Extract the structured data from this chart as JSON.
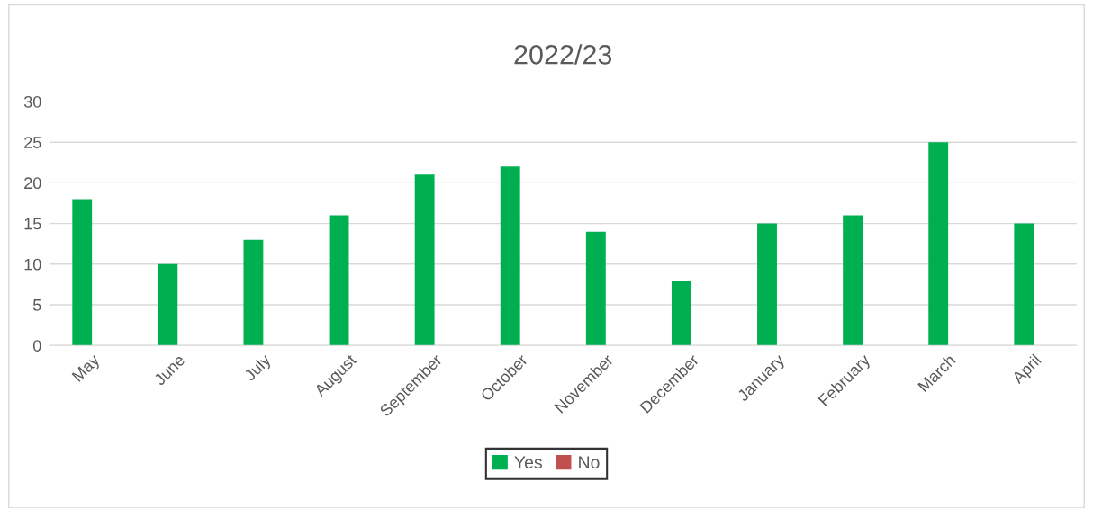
{
  "chart_data": {
    "type": "bar",
    "title": "2022/23",
    "categories": [
      "May",
      "June",
      "July",
      "August",
      "September",
      "October",
      "November",
      "December",
      "January",
      "February",
      "March",
      "April"
    ],
    "series": [
      {
        "name": "Yes",
        "color": "#00b050",
        "values": [
          18,
          10,
          13,
          16,
          21,
          22,
          14,
          8,
          15,
          16,
          25,
          15
        ]
      },
      {
        "name": "No",
        "color": "#c0504d",
        "values": [
          0,
          0,
          0,
          0,
          0,
          0,
          0,
          0,
          0,
          0,
          0,
          0
        ]
      }
    ],
    "ylim": [
      0,
      30
    ],
    "yticks": [
      0,
      5,
      10,
      15,
      20,
      25,
      30
    ],
    "grid": "y",
    "legend": "bottom"
  }
}
